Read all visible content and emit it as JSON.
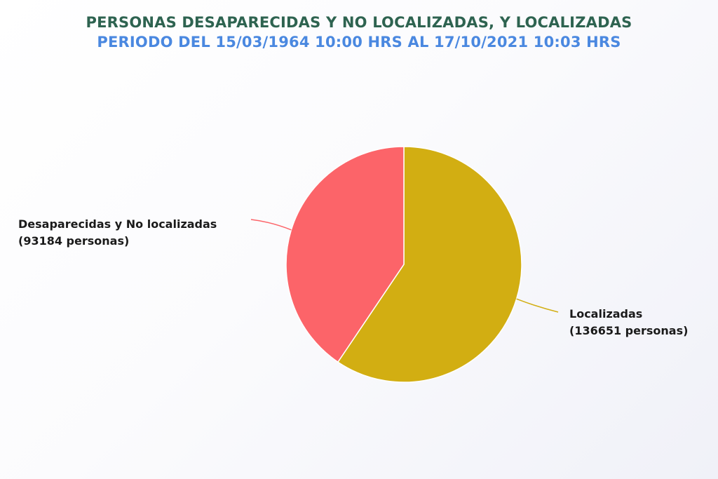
{
  "chart_data": {
    "type": "pie",
    "title": "PERSONAS DESAPARECIDAS Y NO LOCALIZADAS, Y LOCALIZADAS",
    "subtitle": "PERIODO DEL 15/03/1964 10:00 HRS AL 17/10/2021 10:03 HRS",
    "slices": [
      {
        "label": "Localizadas",
        "detail": "(136651 personas)",
        "value": 136651,
        "color": "#d2ae12"
      },
      {
        "label": "Desaparecidas y No localizadas",
        "detail": "(93184 personas)",
        "value": 93184,
        "color": "#fc6469"
      }
    ],
    "start": "12 o'clock",
    "direction": "clockwise",
    "legend": "none"
  }
}
